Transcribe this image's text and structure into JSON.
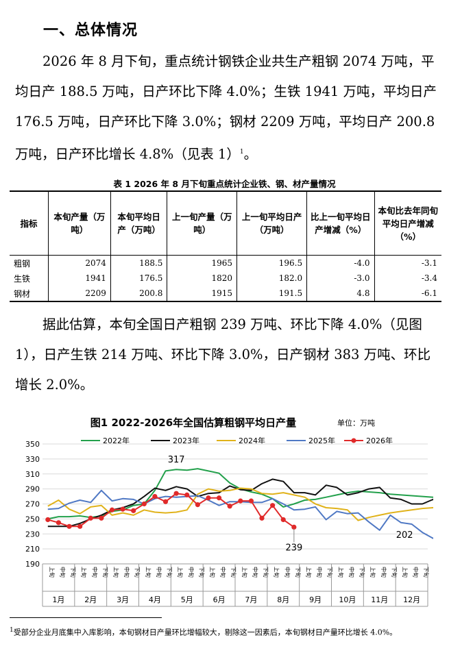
{
  "heading": "一、总体情况",
  "para1": "2026 年 8 月下旬，重点统计钢铁企业共生产粗钢 2074 万吨，平均日产 188.5 万吨，日产环比下降 4.0%；生铁 1941 万吨，平均日产 176.5 万吨，日产环比下降 3.0%；钢材 2209 万吨，平均日产 200.8 万吨，日产环比增长 4.8%（见表 1）",
  "para1_sup": "1",
  "para1_end": "。",
  "table": {
    "caption": "表 1   2026 年 8 月下旬重点统计企业铁、钢、材产量情况",
    "headers": [
      "指标",
      "本旬产量（万吨）",
      "本旬平均日产（万吨）",
      "上一旬产量（万吨）",
      "上一旬平均日产（万吨）",
      "比上一旬平均日产增减（%）",
      "本旬比去年同旬平均日产增减（%）"
    ],
    "rows": [
      [
        "粗钢",
        "2074",
        "188.5",
        "1965",
        "196.5",
        "-4.0",
        "-3.1"
      ],
      [
        "生铁",
        "1941",
        "176.5",
        "1820",
        "182.0",
        "-3.0",
        "-3.4"
      ],
      [
        "钢材",
        "2209",
        "200.8",
        "1915",
        "191.5",
        "4.8",
        "-6.1"
      ]
    ]
  },
  "para2": "据此估算，本旬全国日产粗钢 239 万吨、环比下降 4.0%（见图 1），日产生铁 214 万吨、环比下降 3.0%，日产钢材 383 万吨、环比增长 2.0%。",
  "footnote": "受部分企业月底集中入库影响，本旬钢材日产量环比增幅较大，剔除这一因素后，本旬钢材日产量环比增长 4.0%。",
  "footnote_mark": "1",
  "colors": {
    "s2022": "#22a04b",
    "s2023": "#111111",
    "s2024": "#e0b21a",
    "s2025": "#4f78c4",
    "s2026": "#e02a2a"
  },
  "chart_data": {
    "type": "line",
    "title": "图1  2022-2026年全国估算粗钢平均日产量",
    "unit": "单位：万吨",
    "ylim": [
      190,
      350
    ],
    "yticks": [
      190,
      210,
      230,
      250,
      270,
      290,
      310,
      330,
      350
    ],
    "months": [
      "1月",
      "2月",
      "3月",
      "4月",
      "5月",
      "6月",
      "7月",
      "8月",
      "9月",
      "10月",
      "11月",
      "12月"
    ],
    "dekad_labels": [
      "上旬",
      "中旬",
      "下旬"
    ],
    "grid": true,
    "legend_position": "top",
    "annotations": [
      {
        "series": "2022年",
        "index": 12,
        "text": "317"
      },
      {
        "series": "2026年",
        "index": 23,
        "text": "239"
      },
      {
        "series": "2025年",
        "index": 35,
        "text": "202"
      }
    ],
    "series": [
      {
        "name": "2022年",
        "key": "s2022",
        "marker": false,
        "values": [
          250,
          253,
          253,
          254,
          252,
          254,
          260,
          262,
          268,
          270,
          288,
          314,
          316,
          315,
          317,
          314,
          311,
          298,
          290,
          286,
          283,
          277,
          266,
          270,
          275,
          276,
          279,
          282,
          285,
          287,
          286,
          285,
          283,
          282,
          281,
          280,
          279,
          277,
          275,
          272,
          272,
          273,
          270,
          262,
          251,
          250,
          248,
          240
        ]
      },
      {
        "series_note": "",
        "name": "2023年",
        "key": "s2023",
        "marker": false,
        "values": [
          240,
          240,
          240,
          244,
          250,
          255,
          262,
          265,
          270,
          280,
          291,
          288,
          293,
          290,
          280,
          284,
          285,
          294,
          289,
          288,
          297,
          303,
          300,
          285,
          285,
          282,
          295,
          292,
          282,
          285,
          290,
          292,
          278,
          276,
          270,
          270,
          276,
          266,
          270,
          275,
          268,
          266,
          258,
          261,
          257,
          256,
          240,
          223
        ]
      },
      {
        "name": "2024年",
        "key": "s2024",
        "marker": false,
        "values": [
          267,
          275,
          263,
          257,
          266,
          268,
          255,
          258,
          255,
          262,
          259,
          258,
          259,
          262,
          283,
          290,
          287,
          288,
          291,
          290,
          284,
          283,
          285,
          282,
          279,
          270,
          265,
          264,
          262,
          248,
          252,
          255,
          258,
          260,
          262,
          264,
          265,
          264,
          266,
          267,
          262,
          264,
          265,
          262,
          258,
          250,
          248,
          242
        ]
      },
      {
        "name": "2025年",
        "key": "s2025",
        "marker": false,
        "values": [
          263,
          264,
          271,
          275,
          272,
          288,
          274,
          277,
          276,
          270,
          277,
          280,
          279,
          280,
          281,
          275,
          268,
          273,
          273,
          272,
          272,
          277,
          270,
          262,
          263,
          266,
          249,
          260,
          257,
          258,
          246,
          235,
          255,
          245,
          243,
          232,
          224,
          240,
          234,
          236,
          231,
          218,
          228,
          234,
          228,
          229,
          225,
          202
        ]
      },
      {
        "name": "2026年",
        "key": "s2026",
        "marker": true,
        "values": [
          249,
          245,
          240,
          240,
          251,
          251,
          262,
          263,
          261,
          270,
          280,
          273,
          284,
          282,
          269,
          278,
          278,
          267,
          274,
          274,
          251,
          268,
          249,
          239
        ]
      }
    ],
    "point_labels": {
      "s2026_first": "249"
    }
  }
}
